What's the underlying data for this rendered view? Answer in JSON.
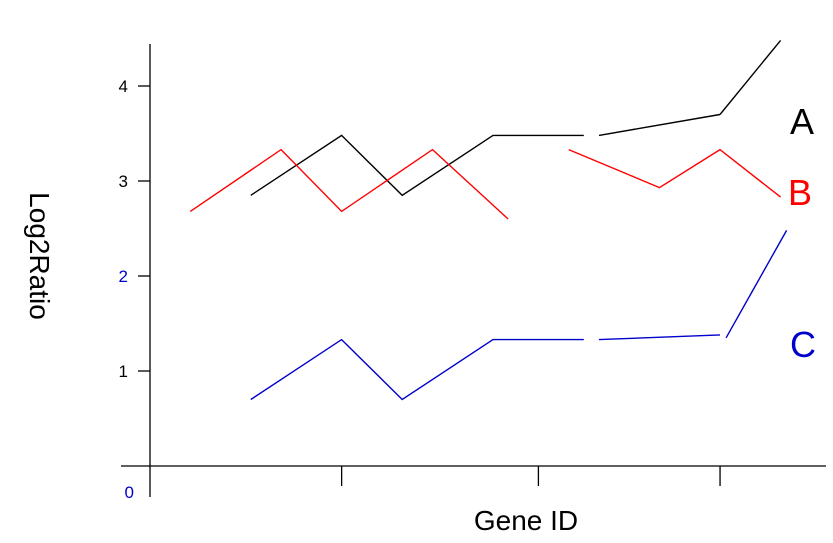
{
  "chart_data": {
    "type": "line",
    "title": "",
    "xlabel": "Gene ID",
    "ylabel": "Log2Ratio",
    "grid": false,
    "legend": "direct labels at right end of each series",
    "y_ticks": [
      {
        "value": 0,
        "label": "0",
        "color": "#0000cc"
      },
      {
        "value": 1,
        "label": "1",
        "color": "#000000"
      },
      {
        "value": 2,
        "label": "2",
        "color": "#0000cc"
      },
      {
        "value": 3,
        "label": "3",
        "color": "#000000"
      },
      {
        "value": 4,
        "label": "4",
        "color": "#000000"
      }
    ],
    "ylim": [
      0,
      4.5
    ],
    "xlim": [
      0,
      11
    ],
    "x_ticks": [
      3,
      6.25,
      9.25
    ],
    "series": [
      {
        "name": "A",
        "color": "#000000",
        "segments": [
          [
            [
              1.5,
              2.85
            ],
            [
              3.0,
              3.48
            ],
            [
              4.0,
              2.85
            ],
            [
              5.5,
              3.48
            ],
            [
              7.0,
              3.48
            ]
          ],
          [
            [
              7.25,
              3.48
            ],
            [
              9.25,
              3.7
            ]
          ],
          [
            [
              9.25,
              3.7
            ],
            [
              10.25,
              4.48
            ]
          ]
        ]
      },
      {
        "name": "B",
        "color": "#ff0000",
        "segments": [
          [
            [
              0.5,
              2.68
            ],
            [
              2.0,
              3.33
            ],
            [
              3.0,
              2.68
            ],
            [
              4.5,
              3.33
            ],
            [
              5.75,
              2.6
            ]
          ],
          [
            [
              6.75,
              3.33
            ],
            [
              8.25,
              2.93
            ],
            [
              9.25,
              3.33
            ],
            [
              10.25,
              2.83
            ]
          ]
        ]
      },
      {
        "name": "C",
        "color": "#0000cc",
        "segments": [
          [
            [
              1.5,
              0.7
            ],
            [
              3.0,
              1.33
            ],
            [
              4.0,
              0.7
            ],
            [
              5.5,
              1.33
            ],
            [
              7.0,
              1.33
            ]
          ],
          [
            [
              7.25,
              1.33
            ],
            [
              9.25,
              1.38
            ]
          ],
          [
            [
              9.35,
              1.35
            ],
            [
              10.35,
              2.48
            ]
          ]
        ]
      }
    ]
  }
}
